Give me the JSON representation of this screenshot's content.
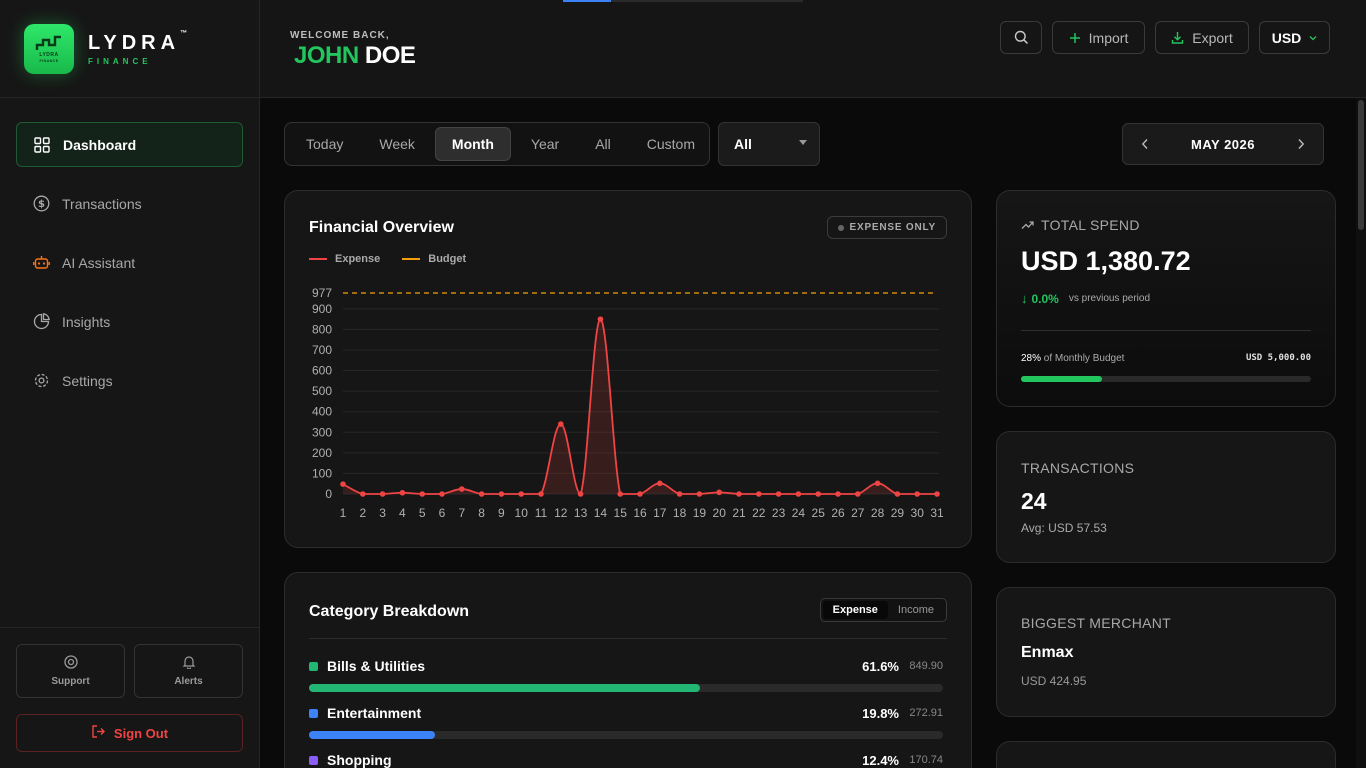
{
  "brand": {
    "name": "LYDRA",
    "tm": "™",
    "subtitle": "FINANCE",
    "logo_text": "LYDRA",
    "logo_sub": "FINANCE"
  },
  "sidebar": {
    "items": [
      {
        "label": "Dashboard",
        "icon": "grid-icon",
        "active": true
      },
      {
        "label": "Transactions",
        "icon": "dollar-circle-icon"
      },
      {
        "label": "AI Assistant",
        "icon": "robot-icon"
      },
      {
        "label": "Insights",
        "icon": "pie-chart-icon"
      },
      {
        "label": "Settings",
        "icon": "gear-icon"
      }
    ],
    "support_label": "Support",
    "alerts_label": "Alerts",
    "signout_label": "Sign Out"
  },
  "header": {
    "welcome": "WELCOME BACK,",
    "first_name": "JOHN",
    "last_name": "DOE",
    "import_label": "Import",
    "export_label": "Export",
    "currency": "USD",
    "progress": 0.2
  },
  "filters": {
    "ranges": [
      "Today",
      "Week",
      "Month",
      "Year",
      "All",
      "Custom"
    ],
    "active_range": "Month",
    "category_select": "All",
    "month_label": "MAY 2026"
  },
  "overview": {
    "title": "Financial Overview",
    "badge": "EXPENSE ONLY",
    "legend_expense": "Expense",
    "legend_budget": "Budget"
  },
  "chart_data": {
    "type": "line",
    "x": [
      1,
      2,
      3,
      4,
      5,
      6,
      7,
      8,
      9,
      10,
      11,
      12,
      13,
      14,
      15,
      16,
      17,
      18,
      19,
      20,
      21,
      22,
      23,
      24,
      25,
      26,
      27,
      28,
      29,
      30,
      31
    ],
    "series": [
      {
        "name": "Expense",
        "values": [
          48,
          0,
          0,
          6,
          0,
          0,
          24,
          0,
          0,
          0,
          0,
          340,
          0,
          850,
          0,
          0,
          52,
          0,
          0,
          8,
          0,
          0,
          0,
          0,
          0,
          0,
          0,
          52,
          0,
          0,
          0
        ]
      },
      {
        "name": "Budget",
        "values": [
          977,
          977,
          977,
          977,
          977,
          977,
          977,
          977,
          977,
          977,
          977,
          977,
          977,
          977,
          977,
          977,
          977,
          977,
          977,
          977,
          977,
          977,
          977,
          977,
          977,
          977,
          977,
          977,
          977,
          977,
          977
        ]
      }
    ],
    "y_ticks": [
      0,
      100,
      200,
      300,
      400,
      500,
      600,
      700,
      800,
      900
    ],
    "y_extra_tick": 977,
    "ylim": [
      0,
      977
    ],
    "colors": {
      "expense": "#ef4444",
      "budget": "#f59e0b"
    },
    "grid": true,
    "legend": "top-left"
  },
  "category": {
    "title": "Category Breakdown",
    "toggle": [
      "Expense",
      "Income"
    ],
    "active_toggle": "Expense",
    "items": [
      {
        "name": "Bills & Utilities",
        "pct": "61.6%",
        "amount": "849.90",
        "fraction": 0.616,
        "color": "#22b573"
      },
      {
        "name": "Entertainment",
        "pct": "19.8%",
        "amount": "272.91",
        "fraction": 0.198,
        "color": "#3b82f6"
      },
      {
        "name": "Shopping",
        "pct": "12.4%",
        "amount": "170.74",
        "fraction": 0.124,
        "color": "#8b5cf6"
      }
    ]
  },
  "stats": {
    "total_spend": {
      "label": "TOTAL SPEND",
      "value": "USD 1,380.72",
      "change_arrow": "↓",
      "change": "0.0%",
      "vs": "vs previous period",
      "budget_pct": "28%",
      "budget_text": "of Monthly Budget",
      "budget_total": "USD 5,000.00",
      "budget_fraction": 0.28
    },
    "transactions": {
      "label": "TRANSACTIONS",
      "value": "24",
      "avg": "Avg: USD 57.53"
    },
    "merchant": {
      "label": "BIGGEST MERCHANT",
      "name": "Enmax",
      "amount": "USD 424.95"
    }
  }
}
